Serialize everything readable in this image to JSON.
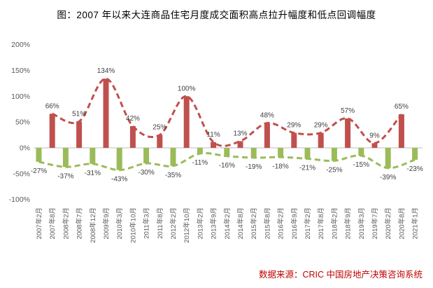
{
  "title": "图：2007 年以来大连商品住宅月度成交面积高点拉升幅度和低点回调幅度",
  "source": "数据来源：CRIC 中国房地产决策咨询系统",
  "chart_data": {
    "type": "bar",
    "subtype": "alternating peak/trough bars with smoothed dashed trend lines through peaks and troughs",
    "title": "图：2007 年以来大连商品住宅月度成交面积高点拉升幅度和低点回调幅度",
    "xlabel": "",
    "ylabel": "",
    "legend": "none",
    "gridlines": "none",
    "ylim": [
      -100,
      200
    ],
    "y_tick_values": [
      200,
      150,
      100,
      50,
      0,
      -50,
      -100
    ],
    "y_tick_labels": [
      "200%",
      "150%",
      "100%",
      "50%",
      "0%",
      "-50%",
      "-100%"
    ],
    "categories": [
      "2007年2月",
      "2007年8月",
      "2008年2月",
      "2008年7月",
      "2008年12月",
      "2009年9月",
      "2010年3月",
      "2010年10月",
      "2011年3月",
      "2011年8月",
      "2012年2月",
      "2012年10月",
      "2013年2月",
      "2013年9月",
      "2014年2月",
      "2014年8月",
      "2015年2月",
      "2015年8月",
      "2016年2月",
      "2016年9月",
      "2017年2月",
      "2017年8月",
      "2018年2月",
      "2018年9月",
      "2019年3月",
      "2019年7月",
      "2020年2月",
      "2020年8月",
      "2021年1月"
    ],
    "values": [
      -27,
      66,
      -37,
      51,
      -31,
      134,
      -43,
      42,
      -30,
      25,
      -35,
      100,
      -11,
      11,
      -16,
      13,
      -19,
      48,
      -18,
      29,
      -21,
      29,
      -25,
      57,
      -15,
      9,
      -39,
      65,
      -23
    ],
    "data_labels": [
      "-27%",
      "66%",
      "-37%",
      "51%",
      "-31%",
      "134%",
      "-43%",
      "42%",
      "-30%",
      "25%",
      "-35%",
      "100%",
      "-11%",
      "11%",
      "-16%",
      "13%",
      "-19%",
      "48%",
      "-18%",
      "29%",
      "-21%",
      "29%",
      "-25%",
      "57%",
      "-15%",
      "9%",
      "-39%",
      "65%",
      "-23%"
    ],
    "colors": {
      "positive_bar": "#c0504d",
      "negative_bar": "#9bbb59",
      "positive_trend_line": "#c0504d",
      "negative_trend_line": "#9bbb59",
      "axis_text": "#595959",
      "data_label_text": "#404040",
      "zero_line": "#c9c9c9",
      "title_text": "#000000",
      "source_text": "#c00000"
    }
  }
}
